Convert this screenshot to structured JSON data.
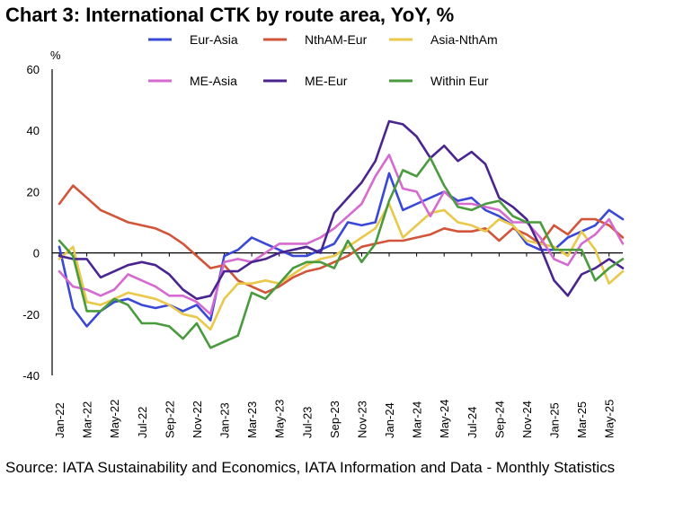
{
  "title": "Chart 3: International CTK by route area, YoY, %",
  "source": "Source: IATA Sustainability and Economics, IATA Information and Data - Monthly Statistics",
  "chart_data": {
    "type": "line",
    "unit_label": "%",
    "ylim": [
      -40,
      60
    ],
    "yticks": [
      -40,
      -20,
      0,
      20,
      40,
      60
    ],
    "x": [
      "Jan-22",
      "Feb-22",
      "Mar-22",
      "Apr-22",
      "May-22",
      "Jun-22",
      "Jul-22",
      "Aug-22",
      "Sep-22",
      "Oct-22",
      "Nov-22",
      "Dec-22",
      "Jan-23",
      "Feb-23",
      "Mar-23",
      "Apr-23",
      "May-23",
      "Jun-23",
      "Jul-23",
      "Aug-23",
      "Sep-23",
      "Oct-23",
      "Nov-23",
      "Dec-23",
      "Jan-24",
      "Feb-24",
      "Mar-24",
      "Apr-24",
      "May-24",
      "Jun-24",
      "Jul-24",
      "Aug-24",
      "Sep-24",
      "Oct-24",
      "Nov-24",
      "Dec-24",
      "Jan-25",
      "Feb-25",
      "Mar-25",
      "Apr-25",
      "May-25",
      "Jun-25"
    ],
    "xtick_labels": [
      "Jan-22",
      "Mar-22",
      "May-22",
      "Jul-22",
      "Sep-22",
      "Nov-22",
      "Jan-23",
      "Mar-23",
      "May-23",
      "Jul-23",
      "Sep-23",
      "Nov-23",
      "Jan-24",
      "Mar-24",
      "May-24",
      "Jul-24",
      "Sep-24",
      "Nov-24",
      "Jan-25",
      "Mar-25",
      "May-25"
    ],
    "series": [
      {
        "name": "Eur-Asia",
        "color": "#3a48d8",
        "values": [
          2,
          -18,
          -24,
          -19,
          -16,
          -15,
          -17,
          -18,
          -17,
          -19,
          -17,
          -22,
          -1,
          1,
          5,
          3,
          1,
          -1,
          -1,
          1,
          3,
          10,
          9,
          10,
          26,
          14,
          16,
          18,
          20,
          17,
          18,
          14,
          12,
          9,
          3,
          1,
          1,
          5,
          7,
          9,
          14,
          11
        ]
      },
      {
        "name": "NthAM-Eur",
        "color": "#d2553a",
        "values": [
          16,
          22,
          18,
          14,
          12,
          10,
          9,
          8,
          6,
          3,
          -1,
          -5,
          -4,
          -9,
          -11,
          -13,
          -11,
          -8,
          -6,
          -5,
          -3,
          -1,
          2,
          3,
          4,
          4,
          5,
          6,
          8,
          7,
          7,
          8,
          4,
          8,
          6,
          3,
          9,
          6,
          11,
          11,
          9,
          5
        ]
      },
      {
        "name": "Asia-NthAm",
        "color": "#e9c84a",
        "values": [
          -2,
          2,
          -16,
          -17,
          -15,
          -13,
          -14,
          -15,
          -17,
          -20,
          -21,
          -25,
          -15,
          -10,
          -10,
          -9,
          -10,
          -7,
          -4,
          -2,
          -1,
          2,
          5,
          8,
          16,
          5,
          9,
          13,
          14,
          10,
          9,
          7,
          11,
          9,
          4,
          3,
          2,
          -1,
          7,
          1,
          -10,
          -6
        ]
      },
      {
        "name": "ME-Asia",
        "color": "#d56ad0",
        "values": [
          -6,
          -11,
          -12,
          -14,
          -12,
          -7,
          -9,
          -11,
          -14,
          -14,
          -16,
          -20,
          -3,
          -2,
          -3,
          0,
          3,
          3,
          3,
          5,
          8,
          12,
          16,
          25,
          32,
          21,
          20,
          12,
          20,
          16,
          16,
          15,
          14,
          10,
          10,
          5,
          -2,
          -4,
          3,
          6,
          11,
          3
        ]
      },
      {
        "name": "ME-Eur",
        "color": "#4a2590",
        "values": [
          -1,
          -2,
          -2,
          -8,
          -6,
          -4,
          -3,
          -4,
          -7,
          -12,
          -15,
          -14,
          -6,
          -6,
          -3,
          -2,
          0,
          1,
          2,
          0,
          13,
          18,
          23,
          30,
          43,
          42,
          38,
          31,
          35,
          30,
          33,
          29,
          18,
          15,
          11,
          2,
          -9,
          -14,
          -7,
          -5,
          -2,
          -5
        ]
      },
      {
        "name": "Within Eur",
        "color": "#4a9a3e",
        "values": [
          4,
          -1,
          -19,
          -19,
          -15,
          -17,
          -23,
          -23,
          -24,
          -28,
          -23,
          -31,
          -29,
          -27,
          -13,
          -15,
          -10,
          -5,
          -3,
          -3,
          -5,
          4,
          -3,
          3,
          17,
          27,
          25,
          31,
          22,
          15,
          14,
          16,
          17,
          12,
          10,
          10,
          1,
          1,
          1,
          -9,
          -5,
          -2
        ]
      }
    ]
  }
}
